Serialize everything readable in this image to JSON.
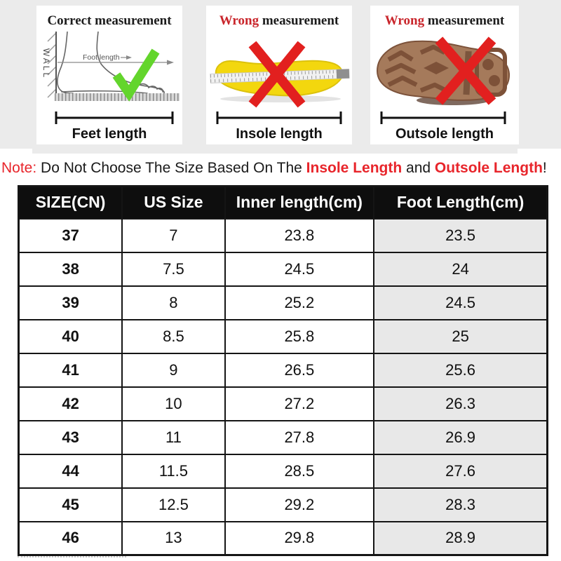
{
  "panels": [
    {
      "title_prefix": "Correct",
      "title_suffix": "measurement",
      "wall_label": "WALL",
      "dim_label": "Foot length",
      "length_label": "Feet length",
      "status": "correct"
    },
    {
      "title_prefix": "Wrong",
      "title_suffix": "measurement",
      "length_label": "Insole length",
      "status": "wrong"
    },
    {
      "title_prefix": "Wrong",
      "title_suffix": "measurement",
      "length_label": "Outsole length",
      "status": "wrong"
    }
  ],
  "note": {
    "prefix": "Note:",
    "body": "Do Not Choose The Size Based On The",
    "em1": "Insole Length",
    "mid": "and",
    "em2": "Outsole Length",
    "suffix": "!"
  },
  "table": {
    "headers": [
      "SIZE(CN)",
      "US Size",
      "Inner length(cm)",
      "Foot Length(cm)"
    ],
    "rows": [
      [
        "37",
        "7",
        "23.8",
        "23.5"
      ],
      [
        "38",
        "7.5",
        "24.5",
        "24"
      ],
      [
        "39",
        "8",
        "25.2",
        "24.5"
      ],
      [
        "40",
        "8.5",
        "25.8",
        "25"
      ],
      [
        "41",
        "9",
        "26.5",
        "25.6"
      ],
      [
        "42",
        "10",
        "27.2",
        "26.3"
      ],
      [
        "43",
        "11",
        "27.8",
        "26.9"
      ],
      [
        "44",
        "11.5",
        "28.5",
        "27.6"
      ],
      [
        "45",
        "12.5",
        "29.2",
        "28.3"
      ],
      [
        "46",
        "13",
        "29.8",
        "28.9"
      ]
    ]
  },
  "colors": {
    "page_bg": "#ffffff",
    "band_gray": "#ebebeb",
    "title_red": "#c9252b",
    "note_red": "#e8252b",
    "x_red": "#e2201f",
    "check_green": "#63d52c",
    "insole_yellow": "#f3d70e",
    "outsole_brown": "#a57a5b",
    "outsole_tread": "#7d5138",
    "header_bg": "#0e0e0e",
    "header_text": "#ffffff",
    "cell_gray": "#e8e8e8",
    "table_border": "#151515"
  }
}
